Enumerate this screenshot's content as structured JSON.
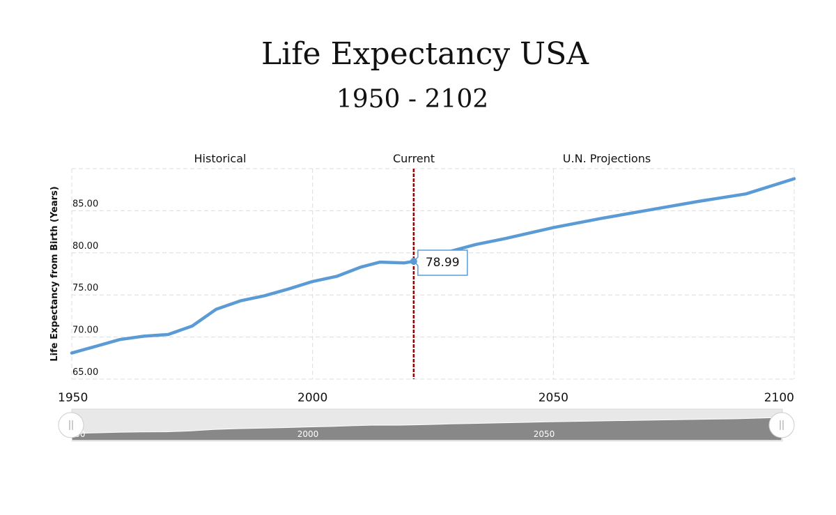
{
  "chart_data": {
    "type": "line",
    "title": "Life Expectancy USA",
    "subtitle": "1950 - 2102",
    "xlabel": "",
    "ylabel": "Life Expectancy from Birth (Years)",
    "xlim": [
      1950,
      2100
    ],
    "ylim": [
      64.9,
      90
    ],
    "x_ticks": [
      "1950",
      "2000",
      "2050",
      "2100"
    ],
    "y_ticks": [
      "65.00",
      "70.00",
      "75.00",
      "80.00",
      "85.00"
    ],
    "grid": true,
    "line_color": "#5b9bd5",
    "series": [
      {
        "x": [
          1950,
          1955,
          1960,
          1965,
          1970,
          1975,
          1980,
          1985,
          1990,
          1995,
          2000,
          2005,
          2010,
          2014,
          2019,
          2021,
          2025,
          2030,
          2034,
          2040,
          2050,
          2060,
          2070,
          2080,
          2090,
          2100
        ],
        "y": [
          68.1,
          68.9,
          69.7,
          70.1,
          70.3,
          71.3,
          73.3,
          74.3,
          74.9,
          75.7,
          76.6,
          77.2,
          78.3,
          78.9,
          78.8,
          78.99,
          79.6,
          80.4,
          81.0,
          81.7,
          83.0,
          84.1,
          85.1,
          86.1,
          87.0,
          88.8
        ]
      }
    ],
    "regions": [
      {
        "label": "Historical"
      },
      {
        "label": "Current",
        "x": 2021,
        "color": "#990000"
      },
      {
        "label": "U.N. Projections"
      }
    ],
    "tooltip": {
      "x": 2021,
      "value": "78.99"
    },
    "navigator": {
      "labels": [
        "1950",
        "2000",
        "2050"
      ],
      "range": [
        1950,
        2100
      ]
    }
  }
}
